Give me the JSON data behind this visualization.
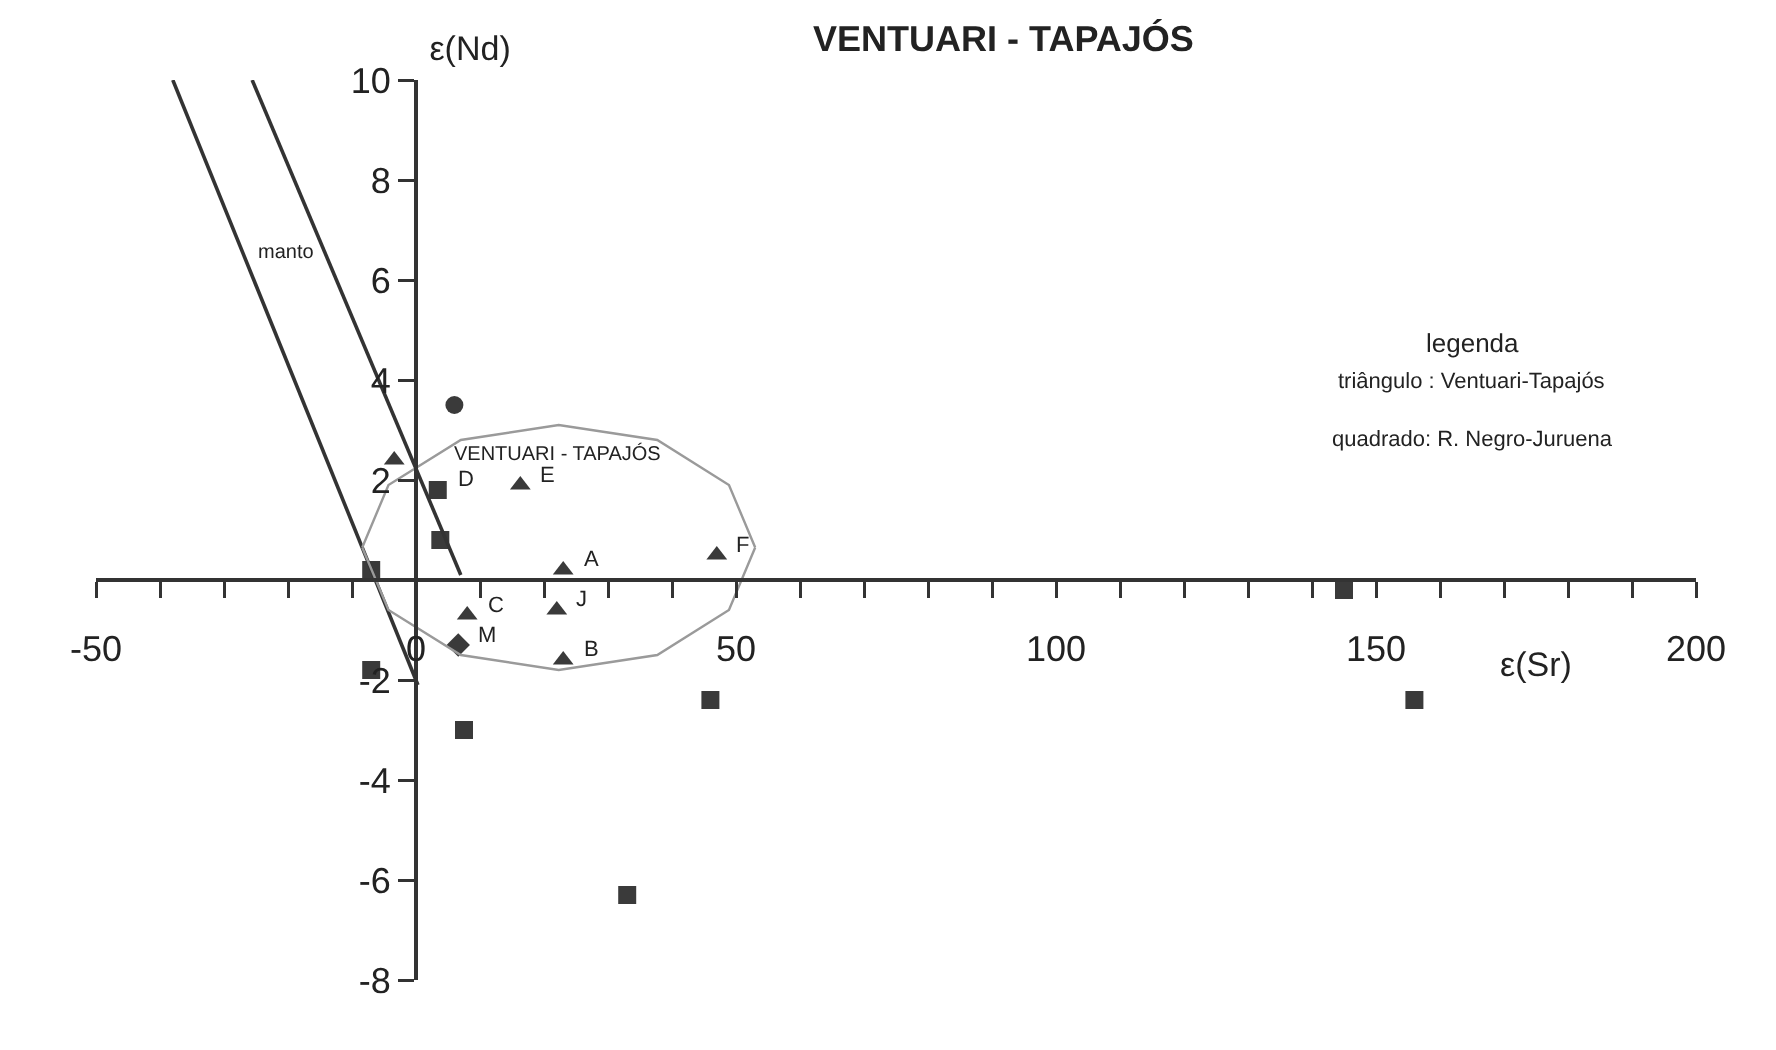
{
  "chart_data": {
    "type": "scatter",
    "title": "VENTUARI - TAPAJÓS",
    "xlabel": "ε(Sr)",
    "ylabel": "ε(Nd)",
    "xlim": [
      -50,
      200
    ],
    "ylim": [
      -8,
      10
    ],
    "xticks": [
      -50,
      {
        "value": -40,
        "label": null
      },
      {
        "value": -30,
        "label": null
      },
      {
        "value": -20,
        "label": null
      },
      {
        "value": -10,
        "label": null
      },
      0,
      {
        "value": 10,
        "label": null
      },
      {
        "value": 20,
        "label": null
      },
      {
        "value": 30,
        "label": null
      },
      {
        "value": 40,
        "label": null
      },
      50,
      {
        "value": 60,
        "label": null
      },
      {
        "value": 70,
        "label": null
      },
      {
        "value": 80,
        "label": null
      },
      {
        "value": 90,
        "label": null
      },
      100,
      {
        "value": 110,
        "label": null
      },
      {
        "value": 120,
        "label": null
      },
      {
        "value": 130,
        "label": null
      },
      {
        "value": 140,
        "label": null
      },
      150,
      {
        "value": 160,
        "label": null
      },
      {
        "value": 170,
        "label": null
      },
      {
        "value": 180,
        "label": null
      },
      {
        "value": 190,
        "label": null
      },
      200
    ],
    "yticks": [
      -8,
      -6,
      -4,
      -2,
      {
        "value": 0,
        "label": null
      },
      2,
      4,
      6,
      8,
      10
    ],
    "grid": false,
    "legend": false,
    "series": [
      {
        "marker": "triangle",
        "color": "#3a3a3a",
        "x": [
          -3.4,
          16.3,
          23,
          47,
          8,
          22,
          23
        ],
        "values": [
          2.4,
          1.9,
          0.2,
          0.5,
          -0.7,
          -0.6,
          -1.6
        ]
      },
      {
        "marker": "square",
        "color": "#3a3a3a",
        "x": [
          3.4,
          3.8,
          -7,
          -7,
          7.5,
          46,
          33,
          145,
          156
        ],
        "values": [
          1.8,
          0.8,
          0.2,
          -1.8,
          -3.0,
          -2.4,
          -6.3,
          -0.2,
          -2.4
        ]
      },
      {
        "marker": "circle",
        "color": "#3a3a3a",
        "x": [
          6
        ],
        "values": [
          3.5
        ]
      },
      {
        "marker": "diamond",
        "color": "#3a3a3a",
        "x": [
          6.6
        ],
        "values": [
          -1.3
        ]
      },
      {
        "type": "line",
        "marker": "none",
        "line_style": "solid",
        "color": "#333333",
        "x": [
          -38,
          0.3
        ],
        "values": [
          10,
          -2.1
        ]
      },
      {
        "type": "line",
        "name": "manto",
        "marker": "none",
        "line_style": "solid",
        "color": "#333333",
        "x": [
          -25.6,
          7
        ],
        "values": [
          10,
          0.1
        ]
      },
      {
        "type": "line",
        "name": "VENTUARI - TAPAJÓS",
        "marker": "none",
        "line_style": "solid",
        "color": "#9a9a9a",
        "x": [
          -8.4,
          -4.3,
          7,
          22.3,
          37.7,
          48.9,
          53
        ],
        "values": [
          0.65,
          1.9,
          2.8,
          3.1,
          2.8,
          1.9,
          0.65
        ]
      },
      {
        "type": "line",
        "marker": "none",
        "line_style": "solid",
        "color": "#9a9a9a",
        "x": [
          -8.4,
          -4.3,
          7,
          22.3,
          37.7,
          48.9,
          53
        ],
        "values": [
          0.65,
          -0.6,
          -1.5,
          -1.8,
          -1.5,
          -0.6,
          0.65
        ]
      }
    ],
    "annotations": [
      {
        "text": "D",
        "x": 3.4,
        "y": 1.8
      },
      {
        "text": "E",
        "x": 16.3,
        "y": 1.9
      },
      {
        "text": "A",
        "x": 23,
        "y": 0.2
      },
      {
        "text": "F",
        "x": 47,
        "y": 0.5
      },
      {
        "text": "C",
        "x": 8,
        "y": -0.7
      },
      {
        "text": "J",
        "x": 22,
        "y": -0.6
      },
      {
        "text": "M",
        "x": 6.6,
        "y": -1.3
      },
      {
        "text": "B",
        "x": 23,
        "y": -1.6
      },
      "legenda",
      "triângulo : Ventuari-Tapajós",
      "quadrado: R. Negro-Juruena"
    ]
  }
}
